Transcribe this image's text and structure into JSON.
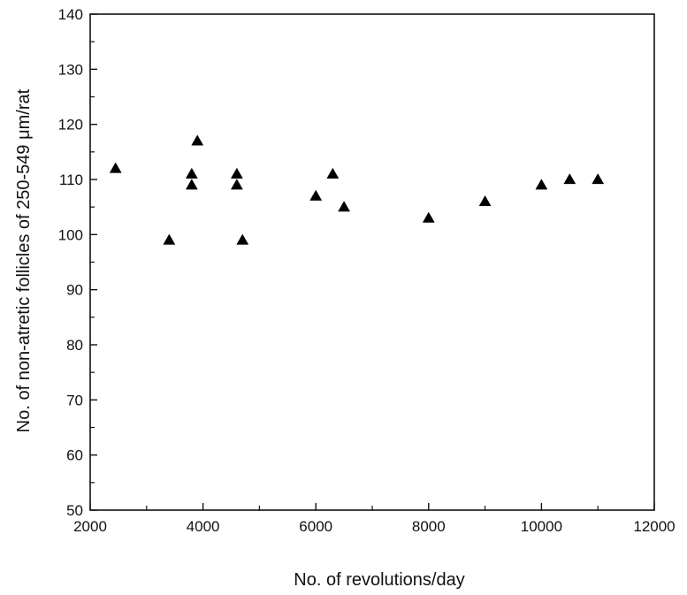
{
  "chart_data": {
    "type": "scatter",
    "title": "",
    "xlabel": "No. of revolutions/day",
    "ylabel": "No. of non-atretic follicles of 250-549 μm/rat",
    "xlim": [
      2000,
      12000
    ],
    "ylim": [
      50,
      140
    ],
    "x_ticks": [
      2000,
      4000,
      6000,
      8000,
      10000,
      12000
    ],
    "y_ticks": [
      50,
      60,
      70,
      80,
      90,
      100,
      110,
      120,
      130,
      140
    ],
    "x_tick_labels": [
      "2000",
      "4000",
      "6000",
      "8000",
      "10000",
      "12000"
    ],
    "y_tick_labels": [
      "50",
      "60",
      "70",
      "80",
      "90",
      "100",
      "110",
      "120",
      "130",
      "140"
    ],
    "grid": false,
    "marker": "filled-triangle",
    "marker_color": "#000000",
    "series": [
      {
        "x": [
          2450,
          3400,
          3800,
          3800,
          3900,
          4600,
          4600,
          4700,
          6000,
          6300,
          6500,
          8000,
          9000,
          10000,
          10500,
          11000
        ],
        "y": [
          112,
          99,
          111,
          109,
          117,
          111,
          109,
          99,
          107,
          111,
          105,
          103,
          106,
          109,
          110,
          110
        ]
      }
    ]
  }
}
